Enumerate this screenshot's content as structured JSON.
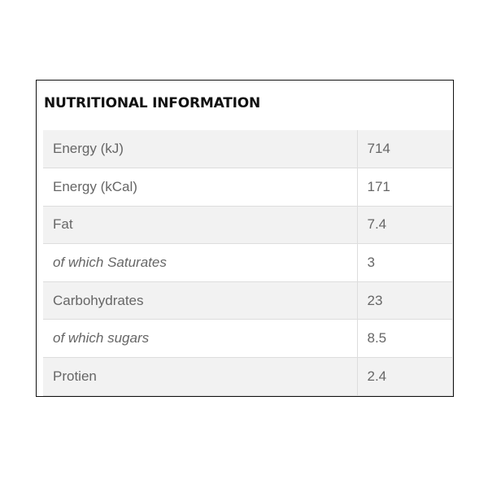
{
  "title": "NUTRITIONAL INFORMATION",
  "rows": [
    {
      "label": "Energy (kJ)",
      "value": "714",
      "italic": false
    },
    {
      "label": "Energy (kCal)",
      "value": "171",
      "italic": false
    },
    {
      "label": "Fat",
      "value": "7.4",
      "italic": false
    },
    {
      "label": "of which Saturates",
      "value": "3",
      "italic": true
    },
    {
      "label": "Carbohydrates",
      "value": "23",
      "italic": false
    },
    {
      "label": "of which sugars",
      "value": "8.5",
      "italic": true
    },
    {
      "label": "Protien",
      "value": "2.4",
      "italic": false
    }
  ]
}
